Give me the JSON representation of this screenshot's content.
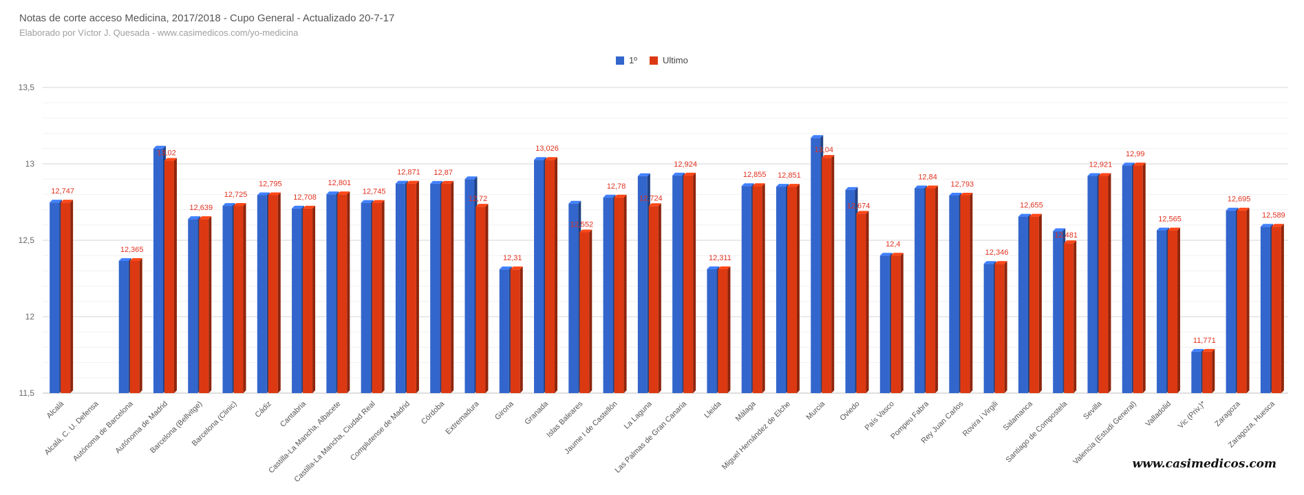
{
  "chart_data": {
    "type": "bar",
    "title": "Notas de corte acceso Medicina, 2017/2018 - Cupo General - Actualizado 20-7-17",
    "subtitle": "Elaborado por Víctor J. Quesada - www.casimedicos.com/yo-medicina",
    "watermark": "www.casimedicos.com",
    "ylim": [
      11.5,
      13.5
    ],
    "yticks": [
      "11,5",
      "12",
      "12,5",
      "13",
      "13,5"
    ],
    "ytick_values": [
      11.5,
      12,
      12.5,
      13,
      13.5
    ],
    "legend_position": "top",
    "grid": true,
    "categories": [
      "Alcalá",
      "Alcalá, C. U. Defensa",
      "Autónoma de Barcelona",
      "Autónoma de Madrid",
      "Barcelona (Bellvitge)",
      "Barcelona (Clinic)",
      "Cádiz",
      "Cantabria",
      "Castilla-La Mancha, Albacete",
      "Castilla-La Mancha, Ciudad Real",
      "Complutense de Madrid",
      "Córdoba",
      "Extremadura",
      "Girona",
      "Granada",
      "Islas Baleares",
      "Jaume I de Castellón",
      "La Laguna",
      "Las Palmas de Gran Canaria",
      "Lleida",
      "Málaga",
      "Miguel Hernández de Elche",
      "Murcia",
      "Oviedo",
      "País Vasco",
      "Pompeu Fabra",
      "Rey Juan Carlos",
      "Rovira i Virgili",
      "Salamanca",
      "Santiago de Compostela",
      "Sevilla",
      "Valencia (Estudi General)",
      "Valladolid",
      "Vic (Priv.)*",
      "Zaragoza",
      "Zaragoza, Huesca"
    ],
    "series": [
      {
        "name": "1º",
        "color": "#3366cc",
        "values": [
          12.747,
          null,
          12.365,
          13.1,
          12.639,
          12.725,
          12.795,
          12.708,
          12.801,
          12.745,
          12.871,
          12.87,
          12.9,
          12.31,
          13.026,
          12.74,
          12.78,
          12.92,
          12.924,
          12.311,
          12.855,
          12.851,
          13.17,
          12.83,
          12.4,
          12.84,
          12.793,
          12.346,
          12.655,
          12.56,
          12.921,
          12.99,
          12.565,
          11.771,
          12.695,
          12.589
        ]
      },
      {
        "name": "Ultimo",
        "color": "#dc3912",
        "values": [
          12.747,
          null,
          12.365,
          13.02,
          12.639,
          12.725,
          12.795,
          12.708,
          12.801,
          12.745,
          12.871,
          12.87,
          12.72,
          12.31,
          13.026,
          12.552,
          12.78,
          12.724,
          12.924,
          12.311,
          12.855,
          12.851,
          13.04,
          12.674,
          12.4,
          12.84,
          12.793,
          12.346,
          12.655,
          12.481,
          12.921,
          12.99,
          12.565,
          11.771,
          12.695,
          12.589
        ],
        "labels": [
          "12,747",
          "",
          "12,365",
          "13,02",
          "12,639",
          "12,725",
          "12,795",
          "12,708",
          "12,801",
          "12,745",
          "12,871",
          "12,87",
          "12,72",
          "12,31",
          "13,026",
          "12,552",
          "12,78",
          "12,724",
          "12,924",
          "12,311",
          "12,855",
          "12,851",
          "13,04",
          "12,674",
          "12,4",
          "12,84",
          "12,793",
          "12,346",
          "12,655",
          "12,481",
          "12,921",
          "12,99",
          "12,565",
          "11,771",
          "12,695",
          "12,589"
        ]
      }
    ]
  }
}
